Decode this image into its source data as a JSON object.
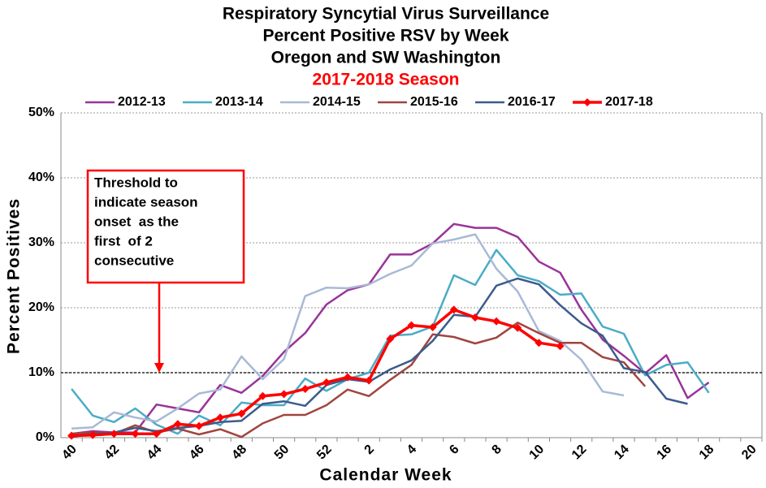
{
  "chart_data": {
    "type": "line",
    "title": [
      "Respiratory Syncytial Virus Surveillance",
      "Percent Positive RSV by Week",
      "Oregon and SW Washington"
    ],
    "subtitle": "2017-2018 Season",
    "x_label": "Calendar Week",
    "y_label": "Percent Positives",
    "categories": [
      "40",
      null,
      "42",
      null,
      "44",
      null,
      "46",
      null,
      "48",
      null,
      "50",
      null,
      "52",
      null,
      "2",
      null,
      "4",
      null,
      "6",
      null,
      "8",
      null,
      "10",
      null,
      "12",
      null,
      "14",
      null,
      "16",
      null,
      "18",
      null,
      "20"
    ],
    "ylim": [
      0,
      50
    ],
    "yticks": [
      {
        "value": 0,
        "label": "0%"
      },
      {
        "value": 10,
        "label": "10%"
      },
      {
        "value": 20,
        "label": "20%"
      },
      {
        "value": 30,
        "label": "30%"
      },
      {
        "value": 40,
        "label": "40%"
      },
      {
        "value": 50,
        "label": "50%"
      }
    ],
    "grid": true,
    "threshold": 10,
    "annotation": [
      "Threshold to",
      "indicate season",
      "onset  as the",
      "first  of 2",
      "consecutive"
    ],
    "legend": "top",
    "series": [
      {
        "name": "2012-13",
        "color": "#993399",
        "values": [
          0.6,
          1.0,
          0.8,
          0.8,
          5.1,
          4.5,
          3.9,
          8.1,
          6.9,
          9.5,
          13.2,
          16.1,
          20.5,
          22.7,
          23.6,
          28.2,
          28.2,
          29.9,
          32.9,
          32.3,
          32.3,
          30.9,
          27.1,
          25.4,
          19.7,
          15.1,
          12.6,
          9.9,
          12.7,
          6.1,
          8.5,
          null,
          null
        ]
      },
      {
        "name": "2013-14",
        "color": "#4BACC6",
        "values": [
          7.5,
          3.4,
          2.4,
          4.5,
          2.0,
          0.6,
          3.4,
          1.9,
          5.4,
          5.0,
          5.0,
          9.1,
          7.2,
          9.0,
          10.0,
          15.7,
          15.9,
          17.1,
          25.0,
          23.5,
          28.9,
          25.0,
          24.1,
          22.0,
          22.2,
          17.1,
          16.0,
          9.6,
          11.2,
          11.6,
          6.9,
          null,
          null
        ]
      },
      {
        "name": "2014-15",
        "color": "#A9B9D6",
        "values": [
          1.4,
          1.6,
          3.9,
          3.1,
          2.5,
          4.5,
          6.8,
          7.4,
          12.5,
          9.0,
          12.1,
          21.8,
          23.1,
          23.0,
          23.6,
          25.2,
          26.5,
          29.9,
          30.5,
          31.3,
          26.0,
          22.5,
          16.4,
          14.9,
          12.0,
          7.1,
          6.5,
          null,
          null,
          null,
          null,
          null,
          null
        ]
      },
      {
        "name": "2015-16",
        "color": "#A0453F",
        "values": [
          0.6,
          0.8,
          0.6,
          1.9,
          0.8,
          1.4,
          0.5,
          1.3,
          0.1,
          2.2,
          3.5,
          3.5,
          5.0,
          7.4,
          6.4,
          8.9,
          11.2,
          15.9,
          15.5,
          14.5,
          15.4,
          17.7,
          16.1,
          14.6,
          14.6,
          12.4,
          11.6,
          7.9,
          null,
          null,
          null,
          null,
          null
        ]
      },
      {
        "name": "2016-17",
        "color": "#3B5C8C",
        "values": [
          0.1,
          0.6,
          0.8,
          1.5,
          1.0,
          1.5,
          1.8,
          2.4,
          2.6,
          5.2,
          5.6,
          4.9,
          8.1,
          9.0,
          8.6,
          10.5,
          11.9,
          14.9,
          18.9,
          18.6,
          23.4,
          24.5,
          23.6,
          20.4,
          17.6,
          15.7,
          10.7,
          10.1,
          6.0,
          5.2,
          null,
          null,
          null
        ]
      },
      {
        "name": "2017-18",
        "color": "#FF0000",
        "marker": "diamond",
        "values": [
          0.3,
          0.4,
          0.6,
          0.6,
          0.6,
          2.1,
          1.8,
          3.1,
          3.7,
          6.4,
          6.7,
          7.5,
          8.5,
          9.3,
          8.8,
          15.2,
          17.3,
          17.0,
          19.7,
          18.5,
          17.9,
          16.9,
          14.6,
          14.1,
          null,
          null,
          null,
          null,
          null,
          null,
          null,
          null,
          null
        ]
      }
    ]
  }
}
